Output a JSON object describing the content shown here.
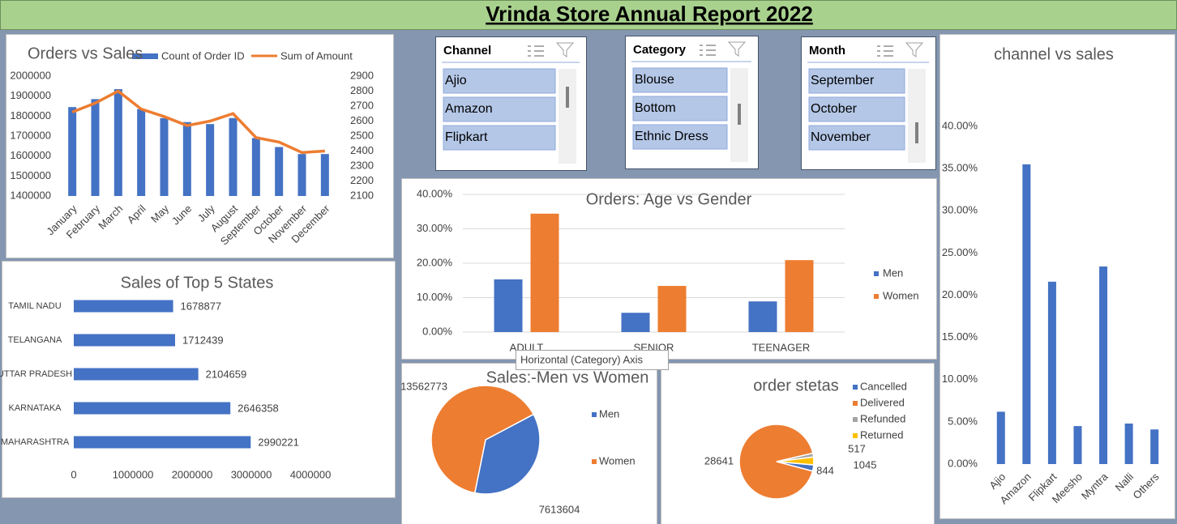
{
  "title": "Vrinda Store Annual Report 2022",
  "slicers": [
    {
      "title": "Channel",
      "items": [
        "Ajio",
        "Amazon",
        "Flipkart"
      ]
    },
    {
      "title": "Category",
      "items": [
        "Blouse",
        "Bottom",
        "Ethnic Dress"
      ]
    },
    {
      "title": "Month",
      "items": [
        "September",
        "October",
        "November"
      ]
    }
  ],
  "tooltip": "Horizontal (Category) Axis",
  "chart_data": [
    {
      "type": "combo",
      "title": "Orders vs Sales",
      "categories": [
        "January",
        "February",
        "March",
        "April",
        "May",
        "June",
        "July",
        "August",
        "September",
        "October",
        "November",
        "December"
      ],
      "series": [
        {
          "name": "Count of Order ID",
          "type": "bar",
          "color": "#4472c4",
          "values": [
            1845000,
            1885000,
            1935000,
            1835000,
            1790000,
            1770000,
            1760000,
            1790000,
            1690000,
            1645000,
            1610000,
            1610000
          ]
        },
        {
          "name": "Sum of Amount",
          "type": "line",
          "axis": "y2",
          "color": "#ed7d31",
          "values": [
            2660,
            2720,
            2800,
            2680,
            2630,
            2570,
            2600,
            2650,
            2490,
            2460,
            2390,
            2400
          ]
        }
      ],
      "ylim": [
        1400000,
        2000000
      ],
      "yticks": [
        1400000,
        1500000,
        1600000,
        1700000,
        1800000,
        1900000,
        2000000
      ],
      "y2lim": [
        2100,
        2900
      ],
      "y2ticks": [
        2100,
        2200,
        2300,
        2400,
        2500,
        2600,
        2700,
        2800,
        2900
      ],
      "legend": "top"
    },
    {
      "type": "hbar",
      "title": "Sales of Top 5 States",
      "categories": [
        "TAMIL NADU",
        "TELANGANA",
        "UTTAR PRADESH",
        "KARNATAKA",
        "MAHARASHTRA"
      ],
      "values": [
        1678877,
        1712439,
        2104659,
        2646358,
        2990221
      ],
      "color": "#4472c4",
      "xlim": [
        0,
        4000000
      ],
      "xticks": [
        0,
        1000000,
        2000000,
        3000000,
        4000000
      ]
    },
    {
      "type": "grouped_bar",
      "title": "Orders: Age vs Gender",
      "categories": [
        "ADULT",
        "SENIOR",
        "TEENAGER"
      ],
      "series": [
        {
          "name": "Men",
          "color": "#4472c4",
          "values": [
            15.3,
            5.6,
            8.9
          ]
        },
        {
          "name": "Women",
          "color": "#ed7d31",
          "values": [
            34.4,
            13.4,
            20.9
          ]
        }
      ],
      "ylim": [
        0,
        40
      ],
      "yticks": [
        {
          "value": 0,
          "label": "0.00%"
        },
        {
          "value": 10,
          "label": "10.00%"
        },
        {
          "value": 20,
          "label": "20.00%"
        },
        {
          "value": 30,
          "label": "30.00%"
        },
        {
          "value": 40,
          "label": "40.00%"
        }
      ],
      "grid": true,
      "legend": "right"
    },
    {
      "type": "pie",
      "title": "Sales:-Men vs Women",
      "labels": [
        "Men",
        "Women"
      ],
      "values": [
        7613604,
        13562773
      ],
      "colors": [
        "#4472c4",
        "#ed7d31"
      ],
      "legend": "right"
    },
    {
      "type": "pie",
      "title": "order stetas",
      "labels": [
        "Cancelled",
        "Delivered",
        "Refunded",
        "Returned"
      ],
      "values": [
        844,
        28641,
        517,
        1045
      ],
      "colors": [
        "#4472c4",
        "#ed7d31",
        "#a5a5a5",
        "#ffc000"
      ],
      "legend": "right"
    },
    {
      "type": "bar",
      "title": "channel vs sales",
      "categories": [
        "Ajio",
        "Amazon",
        "Flipkart",
        "Meesho",
        "Myntra",
        "Nalli",
        "Others"
      ],
      "values": [
        6.2,
        35.5,
        21.6,
        4.5,
        23.4,
        4.8,
        4.1
      ],
      "color": "#4472c4",
      "ylim": [
        0,
        40
      ],
      "yticks": [
        {
          "value": 0,
          "label": "0.00%"
        },
        {
          "value": 5,
          "label": "5.00%"
        },
        {
          "value": 10,
          "label": "10.00%"
        },
        {
          "value": 15,
          "label": "15.00%"
        },
        {
          "value": 20,
          "label": "20.00%"
        },
        {
          "value": 25,
          "label": "25.00%"
        },
        {
          "value": 30,
          "label": "30.00%"
        },
        {
          "value": 35,
          "label": "35.00%"
        },
        {
          "value": 40,
          "label": "40.00%"
        }
      ]
    }
  ]
}
